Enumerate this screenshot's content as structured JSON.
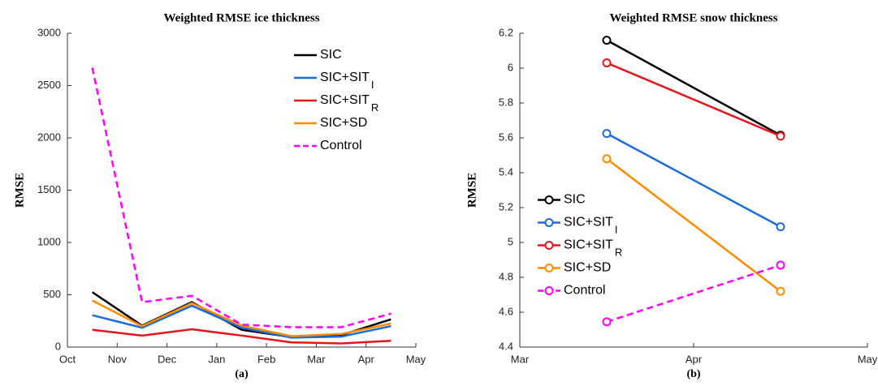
{
  "chart_data": [
    {
      "type": "line",
      "title": "Weighted RMSE ice thickness",
      "ylabel": "RMSE",
      "caption": "(a)",
      "xlim": [
        0,
        7
      ],
      "xticks": [
        {
          "value": 0,
          "label": "Oct"
        },
        {
          "value": 1,
          "label": "Nov"
        },
        {
          "value": 2,
          "label": "Dec"
        },
        {
          "value": 3,
          "label": "Jan"
        },
        {
          "value": 4,
          "label": "Feb"
        },
        {
          "value": 5,
          "label": "Mar"
        },
        {
          "value": 6,
          "label": "Apr"
        },
        {
          "value": 7,
          "label": "May"
        }
      ],
      "ylim": [
        0,
        3000
      ],
      "yticks": [
        0,
        500,
        1000,
        1500,
        2000,
        2500,
        3000
      ],
      "x": [
        0.5,
        1.5,
        2.5,
        3.5,
        4.5,
        5.5,
        6.5
      ],
      "markers": false,
      "legend": "upper right",
      "series": [
        {
          "name": "SIC",
          "color": "#000000",
          "values": [
            525,
            205,
            430,
            165,
            95,
            115,
            265
          ]
        },
        {
          "name": "SIC+SIT",
          "subscript": "I",
          "color": "#1a6ddb",
          "values": [
            305,
            185,
            395,
            185,
            90,
            100,
            200
          ]
        },
        {
          "name": "SIC+SIT",
          "subscript": "R",
          "color": "#e8141c",
          "values": [
            165,
            110,
            170,
            110,
            45,
            35,
            60
          ]
        },
        {
          "name": "SIC+SD",
          "color": "#ff8c00",
          "values": [
            445,
            200,
            420,
            205,
            105,
            125,
            225
          ]
        },
        {
          "name": "Control",
          "color": "#ff00ff",
          "dashed": true,
          "values": [
            2670,
            430,
            490,
            215,
            190,
            190,
            320
          ]
        }
      ]
    },
    {
      "type": "line",
      "title": "Weighted RMSE snow thickness",
      "ylabel": "RMSE",
      "caption": "(b)",
      "xlim": [
        0,
        2
      ],
      "xticks": [
        {
          "value": 0,
          "label": "Mar"
        },
        {
          "value": 1,
          "label": "Apr"
        },
        {
          "value": 2,
          "label": "May"
        }
      ],
      "ylim": [
        4.4,
        6.2
      ],
      "yticks": [
        4.4,
        4.6,
        4.8,
        5,
        5.2,
        5.4,
        5.6,
        5.8,
        6,
        6.2
      ],
      "x": [
        0.5,
        1.5
      ],
      "markers": true,
      "legend": "center left",
      "series": [
        {
          "name": "SIC",
          "color": "#000000",
          "values": [
            6.16,
            5.615
          ]
        },
        {
          "name": "SIC+SIT",
          "subscript": "I",
          "color": "#1a6ddb",
          "values": [
            5.625,
            5.09
          ]
        },
        {
          "name": "SIC+SIT",
          "subscript": "R",
          "color": "#e8141c",
          "values": [
            6.03,
            5.61
          ]
        },
        {
          "name": "SIC+SD",
          "color": "#ff8c00",
          "values": [
            5.48,
            4.72
          ]
        },
        {
          "name": "Control",
          "color": "#ff00ff",
          "dashed": true,
          "values": [
            4.545,
            4.87
          ]
        }
      ]
    }
  ]
}
